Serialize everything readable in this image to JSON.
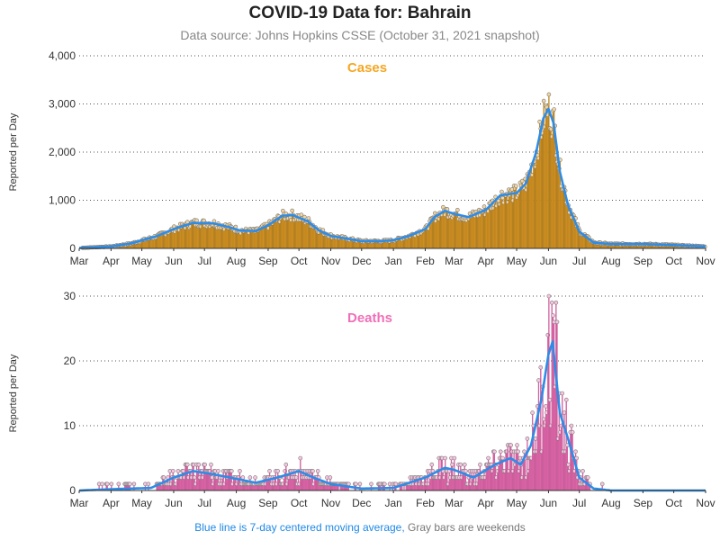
{
  "title": "COVID-19 Data for: Bahrain",
  "subtitle": "Data source: Johns Hopkins CSSE (October 31, 2021 snapshot)",
  "footnote": {
    "blue_text": "Blue line is 7-day centered moving average,",
    "gray_text": "Gray bars are weekends"
  },
  "colors": {
    "cases": "#f5a623",
    "deaths": "#f06fb8",
    "moving_average": "#2e8ce6",
    "grid": "#555555"
  },
  "chart_data": [
    {
      "type": "bar",
      "title": "Cases",
      "ylabel": "Reported per Day",
      "ylim": [
        0,
        4000
      ],
      "yticks": [
        0,
        1000,
        2000,
        3000,
        4000
      ],
      "ytick_labels": [
        "0",
        "1,000",
        "2,000",
        "3,000",
        "4,000"
      ],
      "xticks": [
        "Mar",
        "Apr",
        "May",
        "Jun",
        "Jul",
        "Aug",
        "Sep",
        "Oct",
        "Nov",
        "Dec",
        "Jan",
        "Feb",
        "Mar",
        "Apr",
        "May",
        "Jun",
        "Jul",
        "Aug",
        "Sep",
        "Oct",
        "Nov"
      ],
      "x_start": "2020-03-01",
      "x_end": "2021-11-01",
      "grid": true,
      "moving_average_keypoints": [
        [
          "2020-03-01",
          10
        ],
        [
          "2020-04-01",
          40
        ],
        [
          "2020-04-20",
          100
        ],
        [
          "2020-05-15",
          250
        ],
        [
          "2020-06-01",
          400
        ],
        [
          "2020-06-20",
          530
        ],
        [
          "2020-07-10",
          520
        ],
        [
          "2020-07-25",
          440
        ],
        [
          "2020-08-05",
          370
        ],
        [
          "2020-08-20",
          360
        ],
        [
          "2020-09-01",
          480
        ],
        [
          "2020-09-15",
          680
        ],
        [
          "2020-09-25",
          690
        ],
        [
          "2020-10-10",
          560
        ],
        [
          "2020-10-20",
          380
        ],
        [
          "2020-11-01",
          260
        ],
        [
          "2020-11-20",
          190
        ],
        [
          "2020-12-01",
          150
        ],
        [
          "2020-12-20",
          150
        ],
        [
          "2021-01-01",
          170
        ],
        [
          "2021-01-15",
          250
        ],
        [
          "2021-02-01",
          400
        ],
        [
          "2021-02-10",
          650
        ],
        [
          "2021-02-20",
          780
        ],
        [
          "2021-03-01",
          720
        ],
        [
          "2021-03-15",
          650
        ],
        [
          "2021-04-01",
          800
        ],
        [
          "2021-04-15",
          1100
        ],
        [
          "2021-05-01",
          1150
        ],
        [
          "2021-05-10",
          1350
        ],
        [
          "2021-05-20",
          2000
        ],
        [
          "2021-05-27",
          2700
        ],
        [
          "2021-06-01",
          2900
        ],
        [
          "2021-06-06",
          2600
        ],
        [
          "2021-06-12",
          1600
        ],
        [
          "2021-06-20",
          900
        ],
        [
          "2021-07-01",
          350
        ],
        [
          "2021-07-15",
          120
        ],
        [
          "2021-08-01",
          90
        ],
        [
          "2021-09-01",
          90
        ],
        [
          "2021-10-01",
          70
        ],
        [
          "2021-10-31",
          40
        ]
      ],
      "daily_points_note": ""
    },
    {
      "type": "bar",
      "title": "Deaths",
      "ylabel": "Reported per Day",
      "ylim": [
        0,
        30
      ],
      "yticks": [
        0,
        10,
        20,
        30
      ],
      "ytick_labels": [
        "0",
        "10",
        "20",
        "30"
      ],
      "xticks": [
        "Mar",
        "Apr",
        "May",
        "Jun",
        "Jul",
        "Aug",
        "Sep",
        "Oct",
        "Nov",
        "Dec",
        "Jan",
        "Feb",
        "Mar",
        "Apr",
        "May",
        "Jun",
        "Jul",
        "Aug",
        "Sep",
        "Oct",
        "Nov"
      ],
      "x_start": "2020-03-01",
      "x_end": "2021-11-01",
      "grid": true,
      "moving_average_keypoints": [
        [
          "2020-03-01",
          0
        ],
        [
          "2020-04-01",
          0.2
        ],
        [
          "2020-05-10",
          0.4
        ],
        [
          "2020-06-01",
          2
        ],
        [
          "2020-06-20",
          3
        ],
        [
          "2020-07-10",
          2.5
        ],
        [
          "2020-08-01",
          1.8
        ],
        [
          "2020-08-20",
          1.2
        ],
        [
          "2020-09-10",
          2
        ],
        [
          "2020-10-01",
          3
        ],
        [
          "2020-10-15",
          2
        ],
        [
          "2020-11-01",
          1
        ],
        [
          "2020-12-01",
          0.3
        ],
        [
          "2021-01-01",
          0.4
        ],
        [
          "2021-02-01",
          2
        ],
        [
          "2021-02-20",
          3.5
        ],
        [
          "2021-03-01",
          3.2
        ],
        [
          "2021-03-20",
          2
        ],
        [
          "2021-04-10",
          4
        ],
        [
          "2021-04-25",
          5
        ],
        [
          "2021-05-05",
          4
        ],
        [
          "2021-05-15",
          7
        ],
        [
          "2021-05-25",
          14
        ],
        [
          "2021-06-01",
          21
        ],
        [
          "2021-06-05",
          23
        ],
        [
          "2021-06-12",
          12
        ],
        [
          "2021-06-20",
          8
        ],
        [
          "2021-07-01",
          2
        ],
        [
          "2021-07-15",
          0.3
        ],
        [
          "2021-08-01",
          0
        ],
        [
          "2021-10-31",
          0
        ]
      ]
    }
  ]
}
